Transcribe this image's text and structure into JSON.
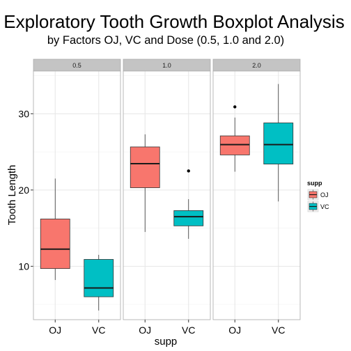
{
  "chart_data": {
    "type": "boxplot",
    "title": "Exploratory Tooth Growth Boxplot Analysis",
    "subtitle": "by Factors OJ, VC and Dose (0.5, 1.0 and 2.0)",
    "xlabel": "supp",
    "ylabel": "Tooth Length",
    "ylim": [
      3,
      35.6
    ],
    "yticks": [
      10,
      20,
      30
    ],
    "grid": true,
    "categories": [
      "OJ",
      "VC"
    ],
    "facets": [
      {
        "label": "0.5",
        "boxes": [
          {
            "category": "OJ",
            "min": 8.2,
            "q1": 9.7,
            "median": 12.25,
            "q3": 16.2,
            "max": 21.5,
            "outliers": []
          },
          {
            "category": "VC",
            "min": 4.2,
            "q1": 6.0,
            "median": 7.15,
            "q3": 10.9,
            "max": 11.5,
            "outliers": []
          }
        ]
      },
      {
        "label": "1.0",
        "boxes": [
          {
            "category": "OJ",
            "min": 14.5,
            "q1": 20.3,
            "median": 23.45,
            "q3": 25.65,
            "max": 27.3,
            "outliers": []
          },
          {
            "category": "VC",
            "min": 13.6,
            "q1": 15.3,
            "median": 16.5,
            "q3": 17.3,
            "max": 18.8,
            "outliers": [
              22.5
            ]
          }
        ]
      },
      {
        "label": "2.0",
        "boxes": [
          {
            "category": "OJ",
            "min": 22.4,
            "q1": 24.6,
            "median": 25.95,
            "q3": 27.1,
            "max": 29.5,
            "outliers": [
              30.9
            ]
          },
          {
            "category": "VC",
            "min": 18.5,
            "q1": 23.4,
            "median": 25.95,
            "q3": 28.8,
            "max": 33.9,
            "outliers": []
          }
        ]
      }
    ],
    "legend": {
      "title": "supp",
      "placement": "right",
      "entries": [
        {
          "label": "OJ",
          "color": "#F8766D"
        },
        {
          "label": "VC",
          "color": "#00BFC4"
        }
      ]
    },
    "colors": {
      "OJ": "#F8766D",
      "VC": "#00BFC4"
    }
  }
}
